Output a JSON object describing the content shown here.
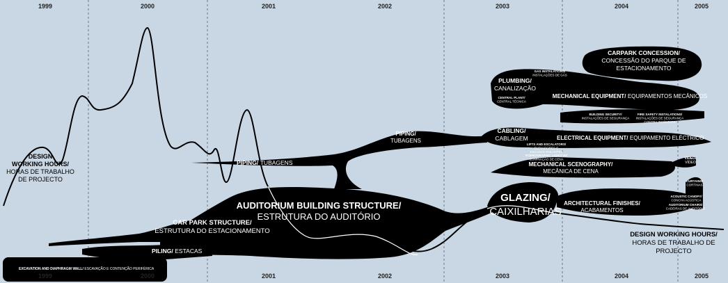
{
  "years_top": [
    "1999",
    "2000",
    "2001",
    "2002",
    "2003",
    "2004",
    "2005"
  ],
  "years_bottom": [
    "1999",
    "2000",
    "2001",
    "2002",
    "2003",
    "2004",
    "2005"
  ],
  "labels": [
    {
      "title": [
        "DESIGN",
        "WORKING HOURS/"
      ],
      "subtitle": [
        "HORAS DE TRABALHO",
        "DE PROJECTO"
      ]
    },
    {
      "title": [
        "PIPING/"
      ],
      "subtitle": [
        "TUBAGENS"
      ]
    },
    {
      "title": [
        "PIPING/"
      ],
      "subtitle": [
        "TUBAGENS"
      ]
    },
    {
      "title": [
        "AUDITORIUM BUILDING STRUCTURE/"
      ],
      "subtitle": [
        "ESTRUTURA DO AUDITÓRIO"
      ]
    },
    {
      "title": [
        "CAR PARK STRUCTURE/"
      ],
      "subtitle": [
        "ESTRUTURA DO ESTACIONAMENTO"
      ]
    },
    {
      "title": [
        "PILING/"
      ],
      "subtitle": [
        "ESTACAS"
      ]
    },
    {
      "title": [
        "EXCAVATION AND DIAPHRAGM WALL/"
      ],
      "subtitle": [
        "ESCAVAÇÃO E CONTENÇÃO PERIFÉRICA"
      ]
    },
    {
      "title": [
        "CABLING/"
      ],
      "subtitle": [
        "CABLAGEM"
      ]
    },
    {
      "title": [
        "ELECTRICAL EQUIPMENT/"
      ],
      "subtitle": [
        "EQUIPAMENTO ELÉCTRICO"
      ]
    },
    {
      "title": [
        "LIFTS AND ESCALATORS/"
      ],
      "subtitle": [
        "ELEVADORES E",
        "ESCADAS ROLANTES"
      ]
    },
    {
      "title": [
        "SCENOGRAPHIC LIGHTING/"
      ],
      "subtitle": [
        "ILUMINAÇÃO DE CENA"
      ]
    },
    {
      "title": [
        "MECHANICAL SCENOGRAPHY/"
      ],
      "subtitle": [
        "MECÂNICA DE CENA"
      ]
    },
    {
      "title": [
        "VIDEO/"
      ],
      "subtitle": [
        "VÍDEO"
      ]
    },
    {
      "title": [
        "GLAZING/"
      ],
      "subtitle": [
        "CAIXILHARIAS"
      ]
    },
    {
      "title": [
        "ARCHITECTURAL FINISHES/"
      ],
      "subtitle": [
        "ACABAMENTOS"
      ]
    },
    {
      "title": [
        "CURTAINS/"
      ],
      "subtitle": [
        "CORTINAS"
      ]
    },
    {
      "title": [
        "ACOUSTIC CANOPY/"
      ],
      "subtitle": [
        "CONCHA ACÚSTICA"
      ]
    },
    {
      "title": [
        "AUDITORIUM CHAIRS/"
      ],
      "subtitle": [
        "CADEIRAS DE AUDITÓRIO"
      ]
    },
    {
      "title": [
        "DESIGN WORKING HOURS/"
      ],
      "subtitle": [
        "HORAS DE TRABALHO DE",
        "PROJECTO"
      ]
    },
    {
      "title": [
        "PLUMBING/"
      ],
      "subtitle": [
        "CANALIZAÇÃO"
      ]
    },
    {
      "title": [
        "GAS INSTALATIONS/"
      ],
      "subtitle": [
        "INSTALAÇÕES DE GÁS"
      ]
    },
    {
      "title": [
        "CENTRAL PLANT/"
      ],
      "subtitle": [
        "CENTRAL TÉCNICA"
      ]
    },
    {
      "title": [
        "MECHANICAL EQUIPMENT/"
      ],
      "subtitle": [
        "EQUIPAMENTOS MECÂNICOS"
      ]
    },
    {
      "title": [
        "CARPARK CONCESSION/"
      ],
      "subtitle": [
        "CONCESSÃO DO PARQUE DE",
        "ESTACIONAMENTO"
      ]
    },
    {
      "title": [
        "BUILDING SECURITY/"
      ],
      "subtitle": [
        "INSTALAÇÕES DE SEGURANÇA"
      ]
    },
    {
      "title": [
        "FIRE SAFETY INSTALATIONS/"
      ],
      "subtitle": [
        "INSTALAÇÕES DE SEGURANÇA",
        "CONTRA INCÊNDIOS"
      ]
    }
  ]
}
